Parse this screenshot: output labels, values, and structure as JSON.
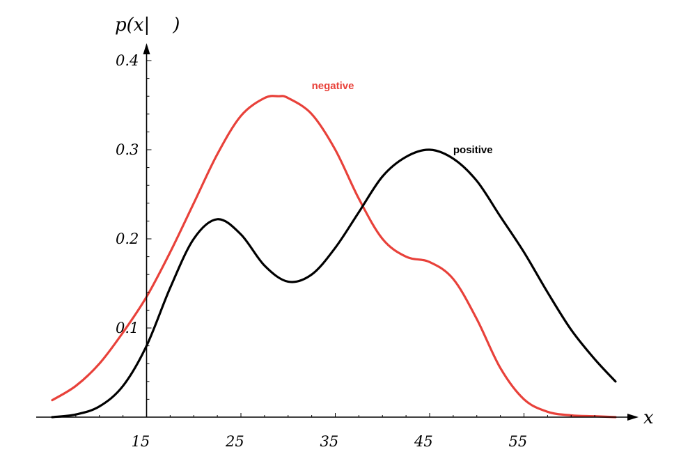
{
  "chart_data": {
    "type": "line",
    "xlabel": "x",
    "ylabel": "p(x|    )",
    "xlim": [
      5,
      65
    ],
    "ylim": [
      0,
      0.4
    ],
    "x_ticks": [
      15,
      25,
      35,
      45,
      55
    ],
    "y_ticks": [
      0.1,
      0.2,
      0.3,
      0.4
    ],
    "y_tick_labels": [
      "0.1",
      "0.2",
      "0.3",
      "0.4"
    ],
    "grid": false,
    "series": [
      {
        "name": "negative",
        "color": "#e8413a",
        "x": [
          5,
          7.5,
          10,
          12.5,
          15,
          17.5,
          20,
          22.5,
          25,
          27.5,
          29,
          30,
          32.5,
          35,
          37.5,
          40,
          42.5,
          45,
          47.5,
          50,
          52.5,
          55,
          57.5,
          60,
          62.5,
          64.7
        ],
        "y": [
          0.019,
          0.035,
          0.06,
          0.095,
          0.135,
          0.185,
          0.24,
          0.295,
          0.338,
          0.358,
          0.36,
          0.358,
          0.34,
          0.3,
          0.245,
          0.2,
          0.18,
          0.174,
          0.155,
          0.11,
          0.055,
          0.02,
          0.006,
          0.002,
          0.001,
          0
        ]
      },
      {
        "name": "positive",
        "color": "#000000",
        "x": [
          5,
          7.5,
          10,
          12.5,
          15,
          17.5,
          20,
          22.5,
          25,
          27.5,
          30,
          32.5,
          35,
          37.5,
          40,
          42.5,
          45,
          47.5,
          50,
          52.5,
          55,
          57.5,
          60,
          62.5,
          64.7
        ],
        "y": [
          0,
          0.003,
          0.012,
          0.035,
          0.08,
          0.145,
          0.2,
          0.222,
          0.205,
          0.17,
          0.152,
          0.16,
          0.19,
          0.23,
          0.27,
          0.292,
          0.3,
          0.29,
          0.265,
          0.225,
          0.185,
          0.14,
          0.098,
          0.065,
          0.04
        ]
      }
    ],
    "annotations": [
      {
        "text": "negative",
        "color": "#e8413a",
        "x": 32.5,
        "y": 0.372
      },
      {
        "text": "positive",
        "color": "#000000",
        "x": 47.5,
        "y": 0.3
      }
    ]
  }
}
